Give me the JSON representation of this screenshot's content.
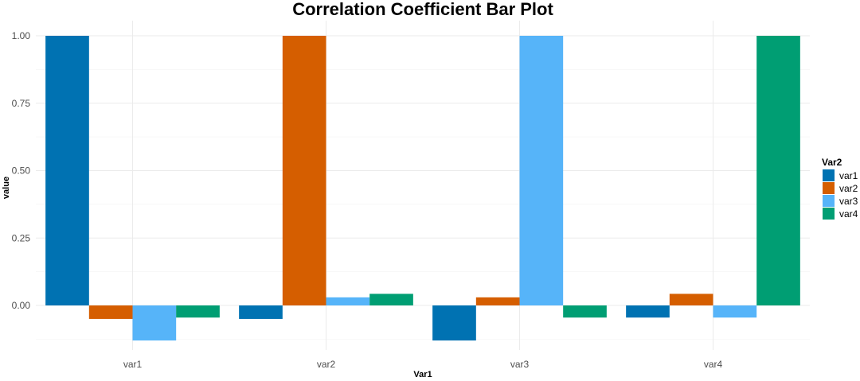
{
  "chart_data": {
    "type": "bar",
    "title": "Correlation Coefficient Bar Plot",
    "xlabel": "Var1",
    "ylabel": "value",
    "categories": [
      "var1",
      "var2",
      "var3",
      "var4"
    ],
    "legend_title": "Var2",
    "legend_position": "right",
    "grid": true,
    "ylim": [
      -0.13,
      1.0
    ],
    "yticks": [
      0.0,
      0.25,
      0.5,
      0.75,
      1.0
    ],
    "ytick_labels": [
      "0.00",
      "0.25",
      "0.50",
      "0.75",
      "1.00"
    ],
    "series": [
      {
        "name": "var1",
        "color": "#0072B2",
        "values": [
          1.0,
          -0.05,
          -0.13,
          -0.045
        ]
      },
      {
        "name": "var2",
        "color": "#D55E00",
        "values": [
          -0.05,
          1.0,
          0.03,
          0.043
        ]
      },
      {
        "name": "var3",
        "color": "#56B4F9",
        "values": [
          -0.13,
          0.03,
          1.0,
          -0.045
        ]
      },
      {
        "name": "var4",
        "color": "#009E73",
        "values": [
          -0.045,
          0.043,
          -0.045,
          1.0
        ]
      }
    ]
  }
}
